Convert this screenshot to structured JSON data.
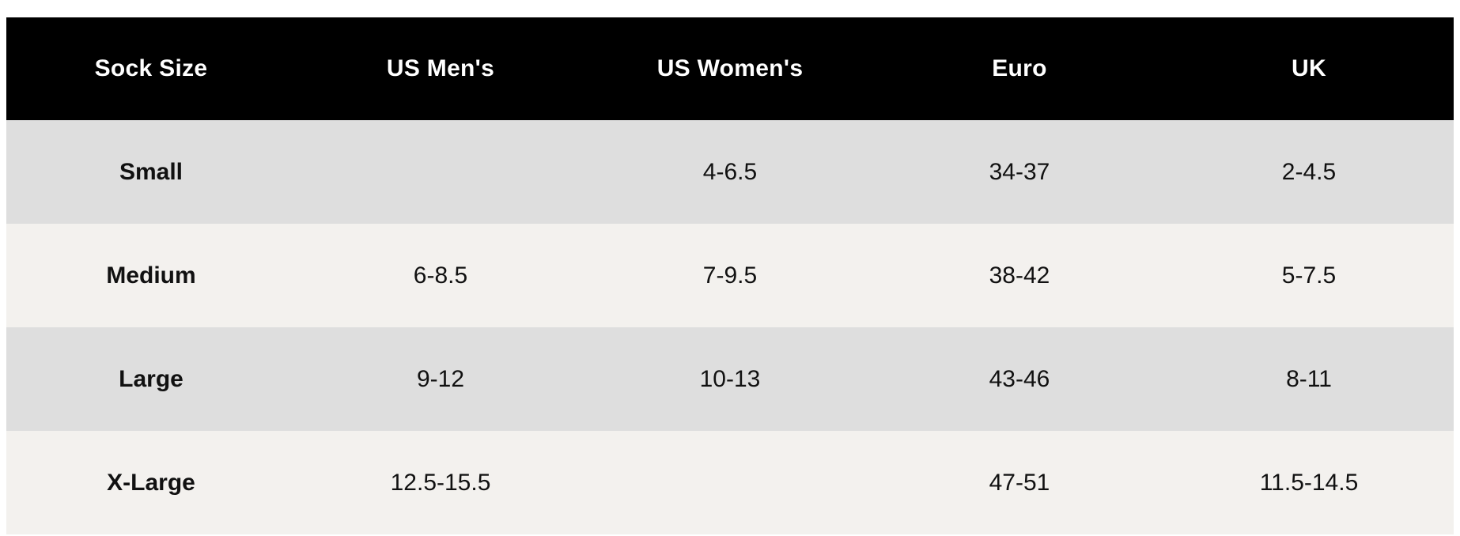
{
  "table": {
    "headers": [
      "Sock Size",
      "US Men's",
      "US Women's",
      "Euro",
      "UK"
    ],
    "rows": [
      [
        "Small",
        "",
        "4-6.5",
        "34-37",
        "2-4.5"
      ],
      [
        "Medium",
        "6-8.5",
        "7-9.5",
        "38-42",
        "5-7.5"
      ],
      [
        "Large",
        "9-12",
        "10-13",
        "43-46",
        "8-11"
      ],
      [
        "X-Large",
        "12.5-15.5",
        "",
        "47-51",
        "11.5-14.5"
      ]
    ]
  },
  "colors": {
    "header_bg": "#000000",
    "header_text": "#ffffff",
    "row_alt_1": "#dedede",
    "row_alt_2": "#f3f1ee",
    "body_text": "#111111"
  }
}
